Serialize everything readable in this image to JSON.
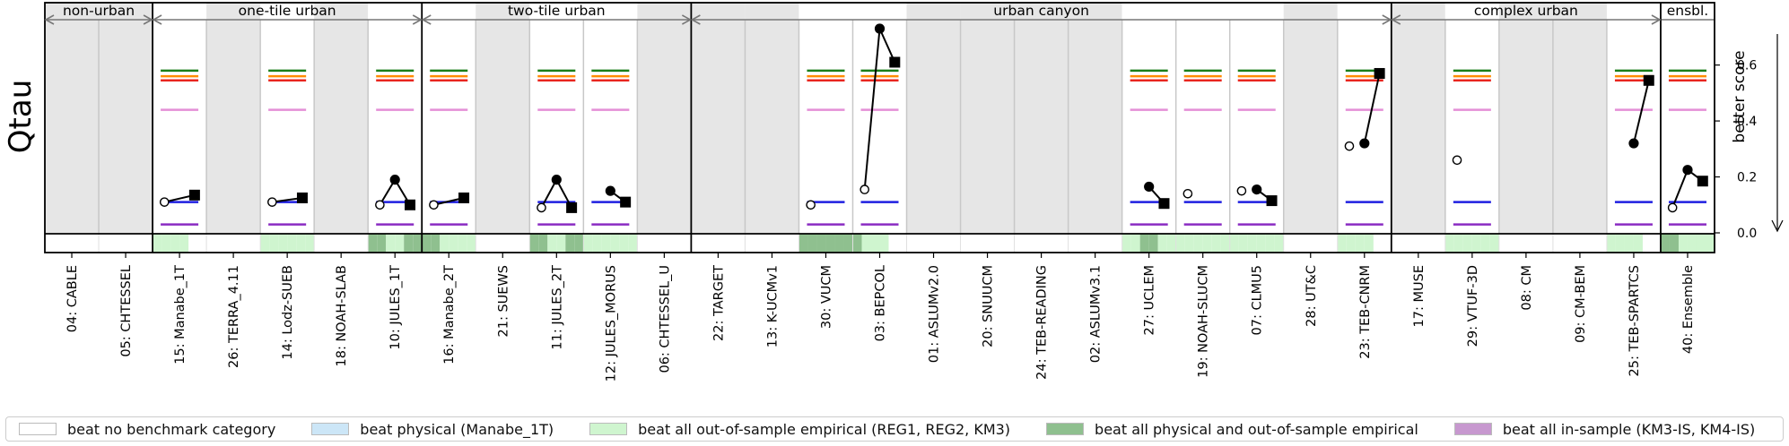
{
  "chart_data": {
    "type": "scatter",
    "ylabel": "Qtau",
    "y2label": "better score",
    "ylim": [
      -0.06,
      0.73
    ],
    "yticks": [
      "0.6",
      "0.4",
      "0.2",
      "0.0"
    ],
    "ytick_values": [
      0.6,
      0.4,
      0.2,
      0.0
    ],
    "benchmark_lines": [
      {
        "name": "green",
        "value": 0.58,
        "color": "#1a7f1a"
      },
      {
        "name": "orange",
        "value": 0.56,
        "color": "#ff8c00"
      },
      {
        "name": "red",
        "value": 0.545,
        "color": "#e8251f"
      },
      {
        "name": "pink",
        "value": 0.44,
        "color": "#e48fd6"
      },
      {
        "name": "blue",
        "value": 0.11,
        "color": "#1f1fe0"
      },
      {
        "name": "purple",
        "value": 0.03,
        "color": "#8a2bc2"
      }
    ],
    "groups": [
      {
        "name": "non-urban",
        "start": 0,
        "end": 2
      },
      {
        "name": "one-tile urban",
        "start": 2,
        "end": 7
      },
      {
        "name": "two-tile urban",
        "start": 7,
        "end": 12
      },
      {
        "name": "urban canyon",
        "start": 12,
        "end": 25
      },
      {
        "name": "complex urban",
        "start": 25,
        "end": 30
      },
      {
        "name": "ensbl.",
        "start": 30,
        "end": 31
      }
    ],
    "categories": [
      "04: CABLE",
      "05: CHTESSEL",
      "15: Manabe_1T",
      "26: TERRA_4.11",
      "14: Lodz-SUEB",
      "18: NOAH-SLAB",
      "10: JULES_1T",
      "16: Manabe_2T",
      "21: SUEWS",
      "11: JULES_2T",
      "12: JULES_MORUS",
      "06: CHTESSEL_U",
      "22: TARGET",
      "13: K-UCMv1",
      "30: VUCM",
      "03: BEPCOL",
      "01: ASLUMv2.0",
      "20: SNUUCM",
      "24: TEB-READING",
      "02: ASLUMv3.1",
      "27: UCLEM",
      "19: NOAH-SLUCM",
      "07: CLMU5",
      "28: UT&C",
      "23: TEB-CNRM",
      "17: MUSE",
      "29: VTUF-3D",
      "08: CM",
      "09: CM-BEM",
      "25: TEB-SPARTCS",
      "40: Ensemble"
    ],
    "submitted": [
      false,
      false,
      true,
      false,
      true,
      false,
      true,
      true,
      false,
      true,
      true,
      false,
      false,
      false,
      true,
      true,
      false,
      false,
      false,
      false,
      true,
      true,
      true,
      false,
      true,
      false,
      true,
      false,
      false,
      true,
      true
    ],
    "stages": [
      {
        "model": "15: Manabe_1T",
        "values": [
          0.11,
          null,
          0.135
        ]
      },
      {
        "model": "14: Lodz-SUEB",
        "values": [
          0.11,
          null,
          0.125
        ]
      },
      {
        "model": "10: JULES_1T",
        "values": [
          0.1,
          0.19,
          0.1
        ]
      },
      {
        "model": "16: Manabe_2T",
        "values": [
          0.1,
          null,
          0.125
        ]
      },
      {
        "model": "11: JULES_2T",
        "values": [
          0.09,
          0.19,
          0.09
        ]
      },
      {
        "model": "12: JULES_MORUS",
        "values": [
          null,
          0.15,
          0.11
        ]
      },
      {
        "model": "30: VUCM",
        "values": [
          0.1,
          null,
          null
        ]
      },
      {
        "model": "03: BEPCOL",
        "values": [
          0.155,
          0.73,
          0.61
        ]
      },
      {
        "model": "27: UCLEM",
        "values": [
          null,
          0.165,
          0.105
        ]
      },
      {
        "model": "19: NOAH-SLUCM",
        "values": [
          0.14,
          null,
          null
        ]
      },
      {
        "model": "07: CLMU5",
        "values": [
          0.15,
          0.155,
          0.115
        ]
      },
      {
        "model": "23: TEB-CNRM",
        "values": [
          0.31,
          0.32,
          0.57
        ]
      },
      {
        "model": "29: VTUF-3D",
        "values": [
          0.26,
          null,
          null
        ]
      },
      {
        "model": "25: TEB-SPARTCS",
        "values": [
          null,
          0.32,
          0.545
        ]
      },
      {
        "model": "40: Ensemble",
        "values": [
          0.09,
          0.225,
          0.185
        ]
      }
    ],
    "benchmark_bar": [
      [
        "none",
        "none",
        "none",
        "none",
        "none",
        "none"
      ],
      [
        "none",
        "none",
        "none",
        "none",
        "none",
        "none"
      ],
      [
        "empirical",
        "empirical",
        "empirical",
        "empirical",
        "none",
        "none"
      ],
      [
        "none",
        "none",
        "none",
        "none",
        "none",
        "none"
      ],
      [
        "empirical",
        "empirical",
        "empirical",
        "empirical",
        "empirical",
        "empirical"
      ],
      [
        "none",
        "none",
        "none",
        "none",
        "none",
        "none"
      ],
      [
        "physical_empirical",
        "physical_empirical",
        "empirical",
        "empirical",
        "physical_empirical",
        "physical_empirical"
      ],
      [
        "physical_empirical",
        "physical_empirical",
        "empirical",
        "empirical",
        "empirical",
        "empirical"
      ],
      [
        "none",
        "none",
        "none",
        "none",
        "none",
        "none"
      ],
      [
        "physical_empirical",
        "physical_empirical",
        "empirical",
        "empirical",
        "physical_empirical",
        "physical_empirical"
      ],
      [
        "empirical",
        "empirical",
        "empirical",
        "empirical",
        "empirical",
        "empirical"
      ],
      [
        "none",
        "none",
        "none",
        "none",
        "none",
        "none"
      ],
      [
        "none",
        "none",
        "none",
        "none",
        "none",
        "none"
      ],
      [
        "none",
        "none",
        "none",
        "none",
        "none",
        "none"
      ],
      [
        "physical_empirical",
        "physical_empirical",
        "physical_empirical",
        "physical_empirical",
        "physical_empirical",
        "physical_empirical"
      ],
      [
        "physical_empirical",
        "empirical",
        "empirical",
        "empirical",
        "none",
        "none"
      ],
      [
        "none",
        "none",
        "none",
        "none",
        "none",
        "none"
      ],
      [
        "none",
        "none",
        "none",
        "none",
        "none",
        "none"
      ],
      [
        "none",
        "none",
        "none",
        "none",
        "none",
        "none"
      ],
      [
        "none",
        "none",
        "none",
        "none",
        "none",
        "none"
      ],
      [
        "empirical",
        "empirical",
        "physical_empirical",
        "physical_empirical",
        "empirical",
        "empirical"
      ],
      [
        "empirical",
        "empirical",
        "empirical",
        "empirical",
        "empirical",
        "empirical"
      ],
      [
        "empirical",
        "empirical",
        "empirical",
        "empirical",
        "empirical",
        "empirical"
      ],
      [
        "none",
        "none",
        "none",
        "none",
        "none",
        "none"
      ],
      [
        "empirical",
        "empirical",
        "empirical",
        "empirical",
        "none",
        "none"
      ],
      [
        "none",
        "none",
        "none",
        "none",
        "none",
        "none"
      ],
      [
        "empirical",
        "empirical",
        "empirical",
        "empirical",
        "empirical",
        "empirical"
      ],
      [
        "none",
        "none",
        "none",
        "none",
        "none",
        "none"
      ],
      [
        "none",
        "none",
        "none",
        "none",
        "none",
        "none"
      ],
      [
        "empirical",
        "empirical",
        "empirical",
        "empirical",
        "none",
        "none"
      ],
      [
        "physical_empirical",
        "physical_empirical",
        "empirical",
        "empirical",
        "empirical",
        "empirical"
      ]
    ],
    "legend": [
      {
        "key": "none",
        "label": "beat no benchmark category",
        "color": "#ffffff"
      },
      {
        "key": "physical",
        "label": "beat physical (Manabe_1T)",
        "color": "#cce6f7"
      },
      {
        "key": "empirical",
        "label": "beat all out-of-sample empirical (REG1, REG2, KM3)",
        "color": "#cff5cf"
      },
      {
        "key": "physical_empirical",
        "label": "beat all physical and out-of-sample empirical",
        "color": "#8fc08f"
      },
      {
        "key": "insample",
        "label": "beat all in-sample (KM3-IS, KM4-IS)",
        "color": "#c798cf"
      }
    ],
    "colors": {
      "unsubmitted": "#e6e6e6",
      "submitted": "#ffffff",
      "divider": "#c8c8c8",
      "marker": "#000000"
    }
  }
}
